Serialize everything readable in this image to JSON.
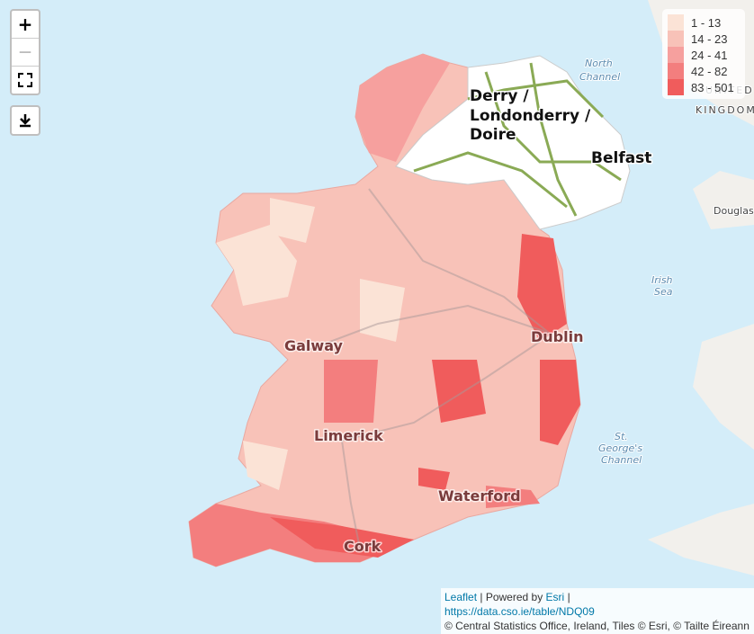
{
  "map": {
    "controls": {
      "zoom_in": "+",
      "zoom_out": "—"
    },
    "legend": [
      {
        "label": "1 - 13",
        "color": "#fbe3d6"
      },
      {
        "label": "14 - 23",
        "color": "#f8c2b8"
      },
      {
        "label": "24 - 41",
        "color": "#f6a09e"
      },
      {
        "label": "42 - 82",
        "color": "#f37e7e"
      },
      {
        "label": "83 - 501",
        "color": "#f05c5c"
      }
    ],
    "places": {
      "derry": [
        "Derry /",
        "Londonderry /",
        "Doire"
      ],
      "belfast": "Belfast",
      "dublin": "Dublin",
      "galway": "Galway",
      "limerick": "Limerick",
      "waterford": "Waterford",
      "cork": "Cork",
      "north_channel": [
        "North",
        "Channel"
      ],
      "irish_sea": [
        "Irish",
        "Sea"
      ],
      "st_georges": [
        "St.",
        "George's",
        "Channel"
      ],
      "douglas": "Douglas",
      "united": "UNITED",
      "kingdom": "KINGDOM"
    },
    "attribution": {
      "leaflet": "Leaflet",
      "powered": "| Powered by",
      "esri": "Esri",
      "sep": "|",
      "url": "https://data.cso.ie/table/NDQ09",
      "credits": "© Central Statistics Office, Ireland, Tiles © Esri, © Tailte Éireann"
    }
  }
}
